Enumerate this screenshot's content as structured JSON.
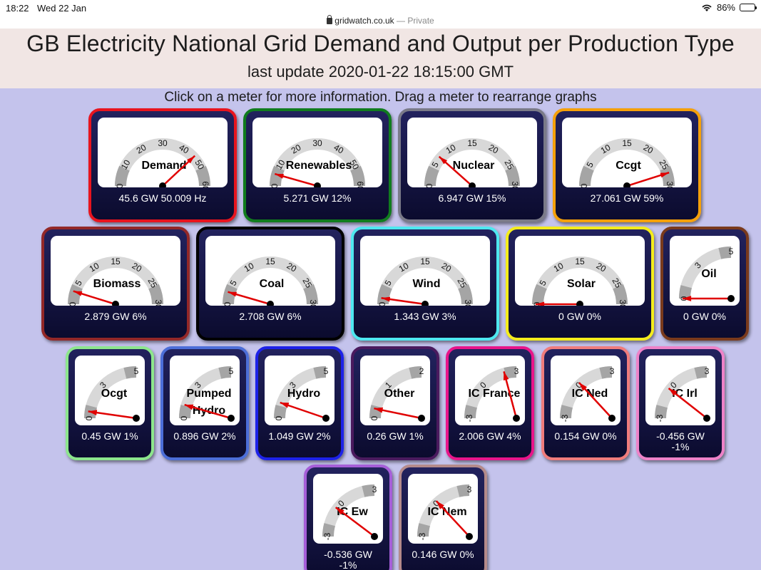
{
  "statusbar": {
    "time": "18:22",
    "date": "Wed 22 Jan",
    "battery_label": "86%",
    "battery_level": 0.86,
    "wifi_icon": "wifi-icon"
  },
  "urlbar": {
    "domain": "gridwatch.co.uk",
    "mode": "— Private"
  },
  "header": {
    "title": "GB Electricity National Grid Demand and Output per Production Type",
    "last_update": "last update 2020-01-22 18:15:00 GMT"
  },
  "hint": "Click on a meter for more information. Drag a meter to rearrange graphs",
  "meters": [
    {
      "name": "Demand",
      "caption": "45.6 GW 50.009 Hz",
      "value": 45.6,
      "max": 60,
      "ticks": [
        "0",
        "10",
        "20",
        "30",
        "40",
        "50",
        "60"
      ],
      "border": "#e8141e"
    },
    {
      "name": "Renewables",
      "caption": "5.271 GW 12%",
      "value": 5.271,
      "max": 60,
      "ticks": [
        "0",
        "10",
        "20",
        "30",
        "40",
        "50",
        "60"
      ],
      "border": "#107c1e"
    },
    {
      "name": "Nuclear",
      "caption": "6.947 GW 15%",
      "value": 6.947,
      "max": 30,
      "ticks": [
        "0",
        "5",
        "10",
        "15",
        "20",
        "25",
        "30"
      ],
      "border": "#7a7a88"
    },
    {
      "name": "Ccgt",
      "caption": "27.061 GW 59%",
      "value": 27.061,
      "max": 30,
      "ticks": [
        "0",
        "5",
        "10",
        "15",
        "20",
        "25",
        "30"
      ],
      "border": "#f5a00a"
    },
    {
      "name": "Biomass",
      "caption": "2.879 GW 6%",
      "value": 2.879,
      "max": 30,
      "ticks": [
        "0",
        "5",
        "10",
        "15",
        "20",
        "25",
        "30"
      ],
      "border": "#932828"
    },
    {
      "name": "Coal",
      "caption": "2.708 GW 6%",
      "value": 2.708,
      "max": 30,
      "ticks": [
        "0",
        "5",
        "10",
        "15",
        "20",
        "25",
        "30"
      ],
      "border": "#000000"
    },
    {
      "name": "Wind",
      "caption": "1.343 GW 3%",
      "value": 1.343,
      "max": 30,
      "ticks": [
        "0",
        "5",
        "10",
        "15",
        "20",
        "25",
        "30"
      ],
      "border": "#4ee8f0"
    },
    {
      "name": "Solar",
      "caption": "0 GW 0%",
      "value": 0,
      "max": 30,
      "ticks": [
        "0",
        "5",
        "10",
        "15",
        "20",
        "25",
        "30"
      ],
      "border": "#f4ec1c"
    },
    {
      "name": "Oil",
      "caption": "0 GW 0%",
      "value": 0,
      "max": 5,
      "ticks": [
        "0",
        "3",
        "5"
      ],
      "border": "#7a3a1c"
    },
    {
      "name": "Ocgt",
      "caption": "0.45 GW 1%",
      "value": 0.45,
      "max": 5,
      "ticks": [
        "0",
        "3",
        "5"
      ],
      "border": "#8ce68c"
    },
    {
      "name": "Pumped Hydro",
      "caption": "0.896 GW 2%",
      "value": 0.896,
      "max": 5,
      "ticks": [
        "0",
        "3",
        "5"
      ],
      "border": "#4c6ed8"
    },
    {
      "name": "Hydro",
      "caption": "1.049 GW 2%",
      "value": 1.049,
      "max": 5,
      "ticks": [
        "0",
        "3",
        "5"
      ],
      "border": "#1d22e8"
    },
    {
      "name": "Other",
      "caption": "0.26 GW 1%",
      "value": 0.26,
      "max": 2,
      "ticks": [
        "0",
        "1",
        "2"
      ],
      "border": "#4a1a5e"
    },
    {
      "name": "IC France",
      "caption": "2.006 GW 4%",
      "value": 2.006,
      "min": -3,
      "max": 3,
      "ticks": [
        "-3",
        "0",
        "3"
      ],
      "border": "#e8158a"
    },
    {
      "name": "IC Ned",
      "caption": "0.154 GW 0%",
      "value": 0.154,
      "min": -3,
      "max": 3,
      "ticks": [
        "-3",
        "0",
        "3"
      ],
      "border": "#f07c7c"
    },
    {
      "name": "IC Irl",
      "caption": "-0.456 GW -1%",
      "value": -0.456,
      "min": -3,
      "max": 3,
      "ticks": [
        "-3",
        "0",
        "3"
      ],
      "border": "#ee82c8"
    },
    {
      "name": "IC Ew",
      "caption": "-0.536 GW -1%",
      "value": -0.536,
      "min": -3,
      "max": 3,
      "ticks": [
        "-3",
        "0",
        "3"
      ],
      "border": "#a55ed8"
    },
    {
      "name": "IC Nem",
      "caption": "0.146 GW 0%",
      "value": 0.146,
      "min": -3,
      "max": 3,
      "ticks": [
        "-3",
        "0",
        "3"
      ],
      "border": "#b48a8a"
    }
  ]
}
